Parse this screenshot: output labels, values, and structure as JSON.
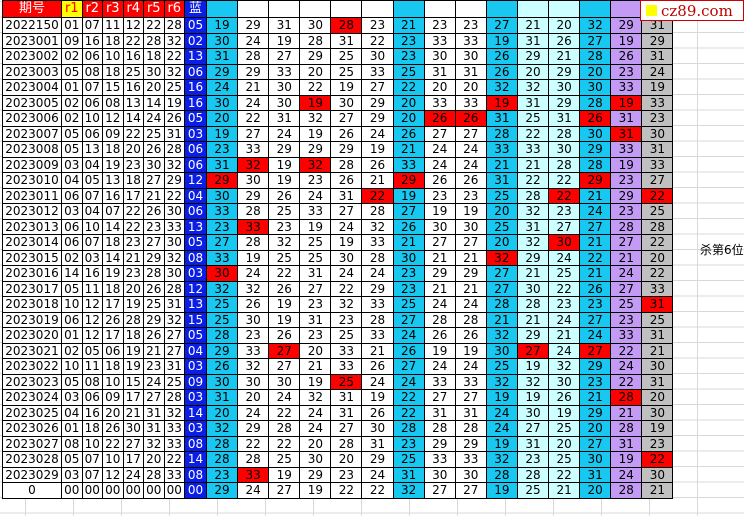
{
  "header": {
    "issue": "期号",
    "reds": [
      "r1",
      "r2",
      "r3",
      "r4",
      "r5",
      "r6"
    ],
    "blue": "蓝"
  },
  "column_colors": [
    "cyan",
    "white",
    "white",
    "white",
    "white",
    "white",
    "cyan",
    "white",
    "white",
    "cyan",
    "lcyan",
    "lcyan",
    "cyan",
    "purple",
    "gray"
  ],
  "colors": {
    "hit": "#ff0000",
    "blue_col": "#0a1ee6",
    "cyan": "#19c8f0",
    "light_cyan": "#ccffff",
    "purple": "#c39bf5",
    "gray": "#c0c0c0"
  },
  "rows": [
    {
      "issue": "2022150",
      "reds": [
        "01",
        "07",
        "11",
        "12",
        "22",
        "28"
      ],
      "blue": "05",
      "vals": [
        19,
        29,
        31,
        30,
        28,
        23,
        21,
        23,
        23,
        27,
        21,
        20,
        32,
        29,
        31
      ],
      "hits": [
        4
      ]
    },
    {
      "issue": "2023001",
      "reds": [
        "09",
        "16",
        "18",
        "22",
        "28",
        "32"
      ],
      "blue": "02",
      "vals": [
        30,
        24,
        19,
        28,
        31,
        22,
        23,
        33,
        33,
        19,
        31,
        26,
        27,
        19,
        29
      ],
      "hits": []
    },
    {
      "issue": "2023002",
      "reds": [
        "02",
        "06",
        "10",
        "16",
        "18",
        "22"
      ],
      "blue": "13",
      "vals": [
        31,
        28,
        27,
        29,
        25,
        30,
        23,
        30,
        30,
        26,
        29,
        21,
        28,
        26,
        31
      ],
      "hits": []
    },
    {
      "issue": "2023003",
      "reds": [
        "05",
        "08",
        "18",
        "25",
        "30",
        "32"
      ],
      "blue": "06",
      "vals": [
        29,
        29,
        33,
        20,
        25,
        33,
        25,
        31,
        31,
        26,
        20,
        29,
        20,
        23,
        24
      ],
      "hits": []
    },
    {
      "issue": "2023004",
      "reds": [
        "01",
        "07",
        "15",
        "16",
        "20",
        "25"
      ],
      "blue": "16",
      "vals": [
        24,
        21,
        30,
        22,
        19,
        27,
        22,
        20,
        20,
        32,
        32,
        30,
        30,
        33,
        19
      ],
      "hits": []
    },
    {
      "issue": "2023005",
      "reds": [
        "02",
        "06",
        "08",
        "13",
        "14",
        "19"
      ],
      "blue": "16",
      "vals": [
        30,
        24,
        30,
        19,
        30,
        29,
        20,
        33,
        33,
        19,
        31,
        29,
        28,
        19,
        33
      ],
      "hits": [
        3,
        9,
        13
      ]
    },
    {
      "issue": "2023006",
      "reds": [
        "02",
        "10",
        "12",
        "14",
        "24",
        "26"
      ],
      "blue": "05",
      "vals": [
        20,
        22,
        31,
        32,
        27,
        29,
        20,
        26,
        26,
        31,
        25,
        31,
        26,
        31,
        23
      ],
      "hits": [
        7,
        8,
        12
      ]
    },
    {
      "issue": "2023007",
      "reds": [
        "05",
        "06",
        "09",
        "22",
        "25",
        "31"
      ],
      "blue": "03",
      "vals": [
        19,
        27,
        24,
        19,
        26,
        24,
        26,
        27,
        27,
        28,
        22,
        28,
        30,
        31,
        30
      ],
      "hits": [
        13
      ]
    },
    {
      "issue": "2023008",
      "reds": [
        "05",
        "13",
        "18",
        "20",
        "26",
        "28"
      ],
      "blue": "06",
      "vals": [
        23,
        33,
        29,
        29,
        29,
        19,
        21,
        24,
        24,
        33,
        33,
        30,
        29,
        33,
        31
      ],
      "hits": []
    },
    {
      "issue": "2023009",
      "reds": [
        "03",
        "04",
        "19",
        "23",
        "30",
        "32"
      ],
      "blue": "06",
      "vals": [
        31,
        32,
        19,
        32,
        28,
        26,
        33,
        24,
        24,
        21,
        21,
        28,
        28,
        19,
        33
      ],
      "hits": [
        1,
        3
      ]
    },
    {
      "issue": "2023010",
      "reds": [
        "04",
        "05",
        "13",
        "18",
        "27",
        "29"
      ],
      "blue": "12",
      "vals": [
        29,
        30,
        19,
        23,
        26,
        21,
        29,
        26,
        26,
        31,
        22,
        22,
        29,
        23,
        27
      ],
      "hits": [
        0,
        6,
        12
      ]
    },
    {
      "issue": "2023011",
      "reds": [
        "06",
        "07",
        "16",
        "17",
        "21",
        "22"
      ],
      "blue": "04",
      "vals": [
        30,
        29,
        26,
        24,
        31,
        22,
        19,
        23,
        23,
        25,
        28,
        22,
        21,
        29,
        22
      ],
      "hits": [
        5,
        11,
        14
      ]
    },
    {
      "issue": "2023012",
      "reds": [
        "03",
        "04",
        "07",
        "22",
        "26",
        "30"
      ],
      "blue": "06",
      "vals": [
        33,
        28,
        25,
        33,
        27,
        28,
        27,
        19,
        19,
        20,
        32,
        23,
        24,
        23,
        25
      ],
      "hits": []
    },
    {
      "issue": "2023013",
      "reds": [
        "06",
        "10",
        "14",
        "22",
        "23",
        "33"
      ],
      "blue": "13",
      "vals": [
        23,
        33,
        23,
        19,
        24,
        32,
        26,
        30,
        30,
        25,
        31,
        27,
        27,
        28,
        28
      ],
      "hits": [
        1
      ]
    },
    {
      "issue": "2023014",
      "reds": [
        "06",
        "07",
        "18",
        "23",
        "27",
        "30"
      ],
      "blue": "05",
      "vals": [
        27,
        28,
        32,
        25,
        19,
        33,
        21,
        27,
        27,
        20,
        32,
        30,
        21,
        27,
        22
      ],
      "hits": [
        11
      ]
    },
    {
      "issue": "2023015",
      "reds": [
        "02",
        "03",
        "14",
        "21",
        "29",
        "32"
      ],
      "blue": "08",
      "vals": [
        33,
        19,
        25,
        25,
        30,
        28,
        30,
        21,
        21,
        32,
        29,
        24,
        22,
        21,
        20
      ],
      "hits": [
        9
      ]
    },
    {
      "issue": "2023016",
      "reds": [
        "14",
        "16",
        "19",
        "23",
        "28",
        "30"
      ],
      "blue": "03",
      "vals": [
        30,
        24,
        22,
        31,
        24,
        24,
        23,
        29,
        29,
        27,
        21,
        25,
        21,
        24,
        22
      ],
      "hits": [
        0
      ]
    },
    {
      "issue": "2023017",
      "reds": [
        "05",
        "11",
        "18",
        "20",
        "26",
        "28"
      ],
      "blue": "12",
      "vals": [
        32,
        32,
        26,
        27,
        22,
        29,
        23,
        21,
        21,
        27,
        30,
        22,
        26,
        27,
        33
      ],
      "hits": []
    },
    {
      "issue": "2023018",
      "reds": [
        "10",
        "12",
        "17",
        "19",
        "25",
        "31"
      ],
      "blue": "13",
      "vals": [
        25,
        26,
        19,
        23,
        32,
        33,
        25,
        24,
        24,
        28,
        28,
        23,
        23,
        25,
        31
      ],
      "hits": [
        14
      ]
    },
    {
      "issue": "2023019",
      "reds": [
        "06",
        "12",
        "26",
        "28",
        "29",
        "32"
      ],
      "blue": "15",
      "vals": [
        25,
        30,
        19,
        31,
        23,
        28,
        27,
        28,
        28,
        21,
        21,
        24,
        27,
        23,
        25
      ],
      "hits": []
    },
    {
      "issue": "2023020",
      "reds": [
        "01",
        "12",
        "17",
        "18",
        "26",
        "27"
      ],
      "blue": "05",
      "vals": [
        28,
        23,
        26,
        23,
        25,
        33,
        24,
        26,
        26,
        32,
        29,
        21,
        24,
        33,
        31
      ],
      "hits": []
    },
    {
      "issue": "2023021",
      "reds": [
        "02",
        "05",
        "06",
        "19",
        "21",
        "27"
      ],
      "blue": "04",
      "vals": [
        29,
        33,
        27,
        20,
        33,
        21,
        26,
        19,
        19,
        30,
        27,
        24,
        27,
        22,
        21
      ],
      "hits": [
        2,
        10,
        12
      ]
    },
    {
      "issue": "2023022",
      "reds": [
        "10",
        "11",
        "18",
        "19",
        "23",
        "31"
      ],
      "blue": "03",
      "vals": [
        26,
        32,
        27,
        21,
        33,
        26,
        27,
        24,
        24,
        25,
        19,
        32,
        29,
        24,
        30
      ],
      "hits": []
    },
    {
      "issue": "2023023",
      "reds": [
        "05",
        "08",
        "10",
        "15",
        "24",
        "25"
      ],
      "blue": "09",
      "vals": [
        30,
        30,
        30,
        19,
        25,
        24,
        24,
        33,
        33,
        32,
        32,
        30,
        23,
        22,
        31
      ],
      "hits": [
        4
      ]
    },
    {
      "issue": "2023024",
      "reds": [
        "03",
        "06",
        "09",
        "17",
        "27",
        "28"
      ],
      "blue": "03",
      "vals": [
        31,
        20,
        24,
        32,
        31,
        19,
        22,
        27,
        27,
        19,
        19,
        26,
        21,
        28,
        20
      ],
      "hits": [
        13
      ]
    },
    {
      "issue": "2023025",
      "reds": [
        "04",
        "16",
        "20",
        "21",
        "31",
        "32"
      ],
      "blue": "14",
      "vals": [
        20,
        24,
        22,
        24,
        31,
        26,
        22,
        31,
        31,
        24,
        30,
        19,
        29,
        21,
        30
      ],
      "hits": []
    },
    {
      "issue": "2023026",
      "reds": [
        "01",
        "18",
        "26",
        "30",
        "31",
        "33"
      ],
      "blue": "03",
      "vals": [
        32,
        29,
        28,
        24,
        27,
        30,
        28,
        28,
        28,
        24,
        27,
        25,
        20,
        28,
        19
      ],
      "hits": []
    },
    {
      "issue": "2023027",
      "reds": [
        "08",
        "10",
        "22",
        "27",
        "32",
        "33"
      ],
      "blue": "08",
      "vals": [
        28,
        22,
        22,
        20,
        28,
        31,
        23,
        29,
        29,
        19,
        31,
        20,
        27,
        31,
        23
      ],
      "hits": []
    },
    {
      "issue": "2023028",
      "reds": [
        "05",
        "07",
        "10",
        "17",
        "20",
        "22"
      ],
      "blue": "14",
      "vals": [
        28,
        28,
        25,
        30,
        20,
        29,
        25,
        33,
        33,
        32,
        23,
        25,
        30,
        19,
        22
      ],
      "hits": [
        14
      ]
    },
    {
      "issue": "2023029",
      "reds": [
        "03",
        "07",
        "12",
        "24",
        "28",
        "33"
      ],
      "blue": "08",
      "vals": [
        23,
        33,
        19,
        29,
        23,
        24,
        31,
        30,
        30,
        28,
        28,
        22,
        31,
        24,
        30
      ],
      "hits": [
        1
      ]
    },
    {
      "issue": "0",
      "reds": [
        "00",
        "00",
        "00",
        "00",
        "00",
        "00"
      ],
      "blue": "00",
      "vals": [
        29,
        24,
        27,
        19,
        22,
        22,
        32,
        27,
        27,
        19,
        25,
        21,
        20,
        28,
        21
      ],
      "hits": []
    }
  ],
  "note": "杀第6位",
  "logo": {
    "text": "cz89.com"
  }
}
